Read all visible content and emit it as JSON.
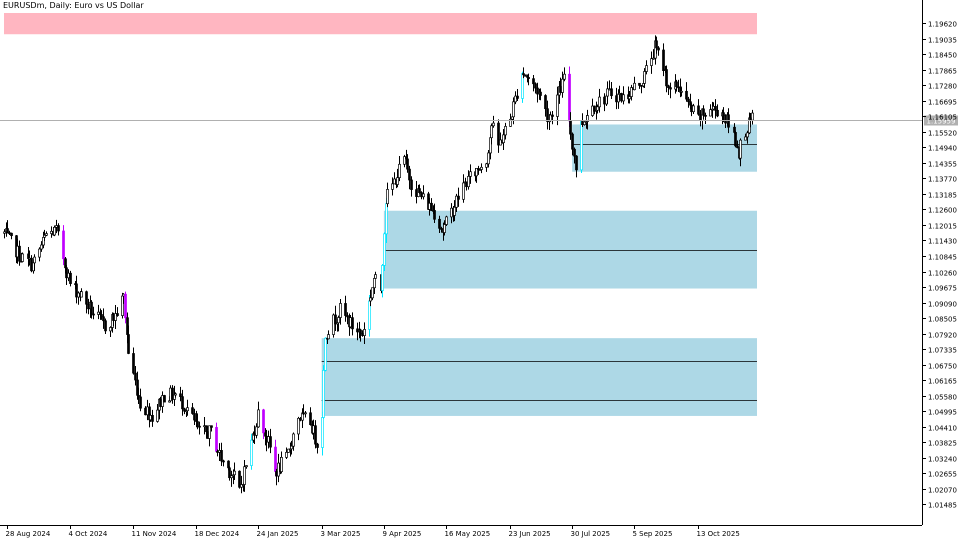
{
  "chart_data": {
    "type": "candlestick",
    "title": "EURUSDm, Daily:  Euro vs US Dollar",
    "current_price_label": "1.15959",
    "y_ticks": [
      "1.19620",
      "1.19035",
      "1.18450",
      "1.17865",
      "1.17280",
      "1.16695",
      "1.16105",
      "1.15520",
      "1.14940",
      "1.14355",
      "1.13770",
      "1.13185",
      "1.12600",
      "1.12015",
      "1.11430",
      "1.10845",
      "1.10260",
      "1.09675",
      "1.09090",
      "1.08505",
      "1.07920",
      "1.07335",
      "1.06750",
      "1.06165",
      "1.05580",
      "1.04995",
      "1.04410",
      "1.03825",
      "1.03240",
      "1.02655",
      "1.02070",
      "1.01485"
    ],
    "x_ticks": [
      "28 Aug 2024",
      "4 Oct 2024",
      "11 Nov 2024",
      "18 Dec 2024",
      "24 Jan 2025",
      "3 Mar 2025",
      "9 Apr 2025",
      "16 May 2025",
      "23 Jun 2025",
      "30 Jul 2025",
      "5 Sep 2025",
      "13 Oct 2025"
    ],
    "ylim": [
      1.0105,
      1.2
    ],
    "grid": false,
    "colors": {
      "bull": "#000000",
      "bear": "#000000",
      "impulse_bull": "#00e5ff",
      "impulse_bear": "#c000ff",
      "zone_fill": "#add8e6",
      "supply_fill": "#ffb6c1",
      "price_line": "#b0b0b0"
    },
    "zones": [
      {
        "kind": "supply",
        "from": "26 Aug 2024",
        "top": 1.2,
        "bottom": 1.192
      },
      {
        "kind": "demand",
        "from": "30 Jul 2025",
        "top": 1.158,
        "bottom": 1.1402,
        "mid": 1.1507
      },
      {
        "kind": "demand",
        "from": "9 Apr 2025",
        "top": 1.1255,
        "bottom": 1.0962,
        "mid": 1.1107
      },
      {
        "kind": "demand",
        "from": "3 Mar 2025",
        "top": 1.0775,
        "bottom": 1.0482,
        "mid": 1.0688,
        "mid2": 1.0541
      }
    ],
    "close_anchors": [
      [
        "26 Aug 2024",
        1.117
      ],
      [
        "5 Sep 2024",
        1.108
      ],
      [
        "12 Sep 2024",
        1.105
      ],
      [
        "20 Sep 2024",
        1.1165
      ],
      [
        "26 Sep 2024",
        1.118
      ],
      [
        "4 Oct 2024",
        1.098
      ],
      [
        "11 Oct 2024",
        1.0935
      ],
      [
        "18 Oct 2024",
        1.087
      ],
      [
        "25 Oct 2024",
        1.082
      ],
      [
        "31 Oct 2024",
        1.086
      ],
      [
        "5 Nov 2024",
        1.093
      ],
      [
        "8 Nov 2024",
        1.072
      ],
      [
        "15 Nov 2024",
        1.053
      ],
      [
        "22 Nov 2024",
        1.048
      ],
      [
        "29 Nov 2024",
        1.056
      ],
      [
        "6 Dec 2024",
        1.056
      ],
      [
        "13 Dec 2024",
        1.051
      ],
      [
        "20 Dec 2024",
        1.042
      ],
      [
        "27 Dec 2024",
        1.042
      ],
      [
        "2 Jan 2025",
        1.032
      ],
      [
        "10 Jan 2025",
        1.025
      ],
      [
        "13 Jan 2025",
        1.02
      ],
      [
        "17 Jan 2025",
        1.03
      ],
      [
        "24 Jan 2025",
        1.049
      ],
      [
        "31 Jan 2025",
        1.036
      ],
      [
        "3 Feb 2025",
        1.027
      ],
      [
        "10 Feb 2025",
        1.032
      ],
      [
        "17 Feb 2025",
        1.048
      ],
      [
        "24 Feb 2025",
        1.046
      ],
      [
        "28 Feb 2025",
        1.038
      ],
      [
        "3 Mar 2025",
        1.05
      ],
      [
        "5 Mar 2025",
        1.079
      ],
      [
        "10 Mar 2025",
        1.084
      ],
      [
        "14 Mar 2025",
        1.088
      ],
      [
        "21 Mar 2025",
        1.082
      ],
      [
        "27 Mar 2025",
        1.079
      ],
      [
        "3 Apr 2025",
        1.1
      ],
      [
        "7 Apr 2025",
        1.096
      ],
      [
        "10 Apr 2025",
        1.13
      ],
      [
        "14 Apr 2025",
        1.135
      ],
      [
        "21 Apr 2025",
        1.145
      ],
      [
        "25 Apr 2025",
        1.136
      ],
      [
        "2 May 2025",
        1.13
      ],
      [
        "9 May 2025",
        1.125
      ],
      [
        "14 May 2025",
        1.118
      ],
      [
        "19 May 2025",
        1.125
      ],
      [
        "26 May 2025",
        1.135
      ],
      [
        "2 Jun 2025",
        1.14
      ],
      [
        "9 Jun 2025",
        1.145
      ],
      [
        "12 Jun 2025",
        1.158
      ],
      [
        "16 Jun 2025",
        1.15
      ],
      [
        "23 Jun 2025",
        1.16
      ],
      [
        "30 Jun 2025",
        1.178
      ],
      [
        "3 Jul 2025",
        1.176
      ],
      [
        "10 Jul 2025",
        1.17
      ],
      [
        "16 Jul 2025",
        1.16
      ],
      [
        "22 Jul 2025",
        1.17
      ],
      [
        "25 Jul 2025",
        1.175
      ],
      [
        "29 Jul 2025",
        1.155
      ],
      [
        "1 Aug 2025",
        1.142
      ],
      [
        "4 Aug 2025",
        1.158
      ],
      [
        "11 Aug 2025",
        1.165
      ],
      [
        "18 Aug 2025",
        1.168
      ],
      [
        "22 Aug 2025",
        1.17
      ],
      [
        "29 Aug 2025",
        1.168
      ],
      [
        "5 Sep 2025",
        1.172
      ],
      [
        "10 Sep 2025",
        1.175
      ],
      [
        "17 Sep 2025",
        1.187
      ],
      [
        "22 Sep 2025",
        1.18
      ],
      [
        "26 Sep 2025",
        1.17
      ],
      [
        "1 Oct 2025",
        1.173
      ],
      [
        "7 Oct 2025",
        1.165
      ],
      [
        "13 Oct 2025",
        1.16
      ],
      [
        "20 Oct 2025",
        1.164
      ],
      [
        "27 Oct 2025",
        1.163
      ],
      [
        "3 Nov 2025",
        1.154
      ],
      [
        "6 Nov 2025",
        1.148
      ],
      [
        "10 Nov 2025",
        1.156
      ],
      [
        "14 Nov 2025",
        1.1596
      ]
    ]
  }
}
